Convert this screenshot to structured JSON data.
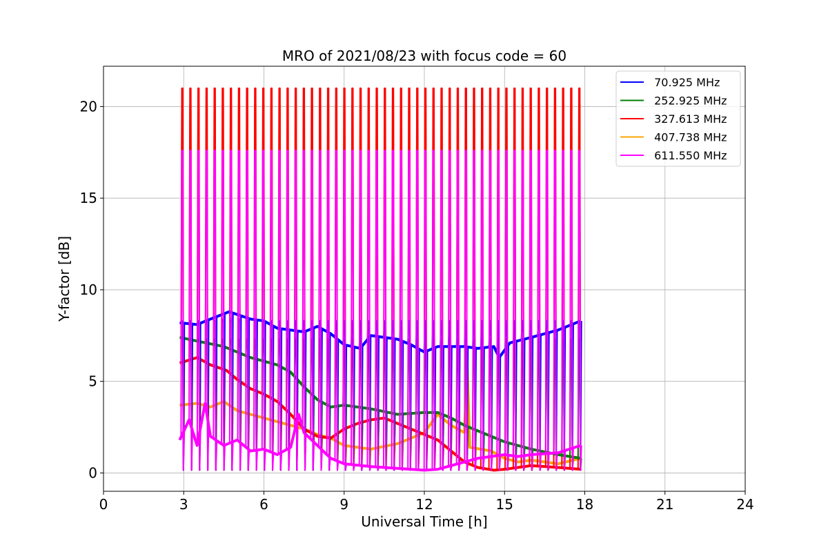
{
  "chart_data": {
    "type": "line",
    "title": "MRO of 2021/08/23 with focus code = 60",
    "xlabel": "Universal Time [h]",
    "ylabel": "Y-factor [dB]",
    "xlim": [
      0,
      24
    ],
    "ylim": [
      -1,
      22.2
    ],
    "xticks": [
      0,
      3,
      6,
      9,
      12,
      15,
      18,
      21,
      24
    ],
    "yticks": [
      0,
      5,
      10,
      15,
      20
    ],
    "grid": true,
    "legend_position": "top-right",
    "x_start": 2.85,
    "x_end": 17.85,
    "calibration_pulses": {
      "count": 50,
      "first_time": 2.95,
      "last_time": 17.8,
      "pulse_width_h": 0.05
    },
    "series": [
      {
        "name": " 70.925 MHz",
        "color": "#0000ff",
        "pulse_peak": 8.3,
        "pulse_floor": 0.15,
        "baseline": [
          [
            2.85,
            8.2
          ],
          [
            3.5,
            8.1
          ],
          [
            4.0,
            8.4
          ],
          [
            4.7,
            8.8
          ],
          [
            5.5,
            8.4
          ],
          [
            6.0,
            8.3
          ],
          [
            6.5,
            7.9
          ],
          [
            7.5,
            7.7
          ],
          [
            8.0,
            8.0
          ],
          [
            8.5,
            7.6
          ],
          [
            9.0,
            7.0
          ],
          [
            9.6,
            6.8
          ],
          [
            10.0,
            7.5
          ],
          [
            11.0,
            7.3
          ],
          [
            11.5,
            7.0
          ],
          [
            12.0,
            6.6
          ],
          [
            12.5,
            6.9
          ],
          [
            13.5,
            6.9
          ],
          [
            14.0,
            6.8
          ],
          [
            14.6,
            6.9
          ],
          [
            14.8,
            6.3
          ],
          [
            15.2,
            7.1
          ],
          [
            16.0,
            7.4
          ],
          [
            17.0,
            7.8
          ],
          [
            17.85,
            8.3
          ]
        ]
      },
      {
        "name": " 252.925 MHz",
        "color": "#008000",
        "pulse_peak": 7.3,
        "pulse_floor": 0.15,
        "baseline": [
          [
            2.85,
            7.4
          ],
          [
            3.5,
            7.2
          ],
          [
            4.5,
            6.9
          ],
          [
            5.0,
            6.6
          ],
          [
            5.5,
            6.3
          ],
          [
            6.0,
            6.1
          ],
          [
            6.5,
            5.9
          ],
          [
            7.0,
            5.5
          ],
          [
            7.5,
            4.7
          ],
          [
            8.0,
            4.0
          ],
          [
            8.5,
            3.6
          ],
          [
            9.0,
            3.7
          ],
          [
            10.0,
            3.5
          ],
          [
            11.0,
            3.2
          ],
          [
            12.0,
            3.3
          ],
          [
            12.5,
            3.3
          ],
          [
            13.0,
            3.0
          ],
          [
            13.5,
            2.6
          ],
          [
            14.0,
            2.3
          ],
          [
            15.0,
            1.7
          ],
          [
            16.0,
            1.3
          ],
          [
            17.0,
            1.0
          ],
          [
            17.85,
            0.8
          ]
        ]
      },
      {
        "name": " 327.613 MHz",
        "color": "#ff0000",
        "pulse_peak": 21.0,
        "pulse_floor": 0.15,
        "baseline": [
          [
            2.85,
            6.0
          ],
          [
            3.5,
            6.3
          ],
          [
            4.0,
            5.9
          ],
          [
            4.6,
            5.6
          ],
          [
            5.0,
            5.1
          ],
          [
            5.5,
            4.6
          ],
          [
            6.0,
            4.3
          ],
          [
            6.5,
            3.9
          ],
          [
            7.0,
            3.2
          ],
          [
            7.5,
            2.4
          ],
          [
            8.0,
            2.0
          ],
          [
            8.5,
            1.9
          ],
          [
            9.0,
            2.4
          ],
          [
            9.5,
            2.7
          ],
          [
            10.0,
            2.9
          ],
          [
            10.5,
            3.0
          ],
          [
            11.0,
            2.7
          ],
          [
            11.5,
            2.4
          ],
          [
            12.0,
            2.1
          ],
          [
            12.5,
            1.8
          ],
          [
            13.0,
            1.2
          ],
          [
            13.5,
            0.6
          ],
          [
            14.0,
            0.3
          ],
          [
            14.6,
            0.15
          ],
          [
            15.0,
            0.2
          ],
          [
            15.5,
            0.3
          ],
          [
            16.0,
            0.4
          ],
          [
            17.0,
            0.3
          ],
          [
            17.85,
            0.2
          ]
        ]
      },
      {
        "name": " 407.738 MHz",
        "color": "#ffa500",
        "pulse_peak": 20.1,
        "pulse_floor": 0.15,
        "baseline": [
          [
            2.85,
            3.7
          ],
          [
            3.5,
            3.8
          ],
          [
            4.0,
            3.6
          ],
          [
            4.5,
            3.9
          ],
          [
            5.0,
            3.4
          ],
          [
            5.5,
            3.2
          ],
          [
            6.0,
            3.0
          ],
          [
            7.0,
            2.6
          ],
          [
            7.5,
            2.4
          ],
          [
            8.0,
            2.1
          ],
          [
            8.5,
            1.9
          ],
          [
            9.0,
            1.5
          ],
          [
            10.0,
            1.3
          ],
          [
            11.0,
            1.6
          ],
          [
            12.0,
            2.2
          ],
          [
            12.5,
            3.2
          ],
          [
            13.0,
            2.6
          ],
          [
            13.5,
            2.2
          ],
          [
            13.6,
            5.9
          ],
          [
            13.7,
            1.4
          ],
          [
            14.5,
            1.2
          ],
          [
            15.0,
            0.8
          ],
          [
            15.5,
            0.6
          ],
          [
            16.0,
            0.7
          ],
          [
            17.0,
            0.5
          ],
          [
            17.85,
            0.8
          ]
        ]
      },
      {
        "name": " 611.550 MHz",
        "color": "#ff00ff",
        "pulse_peak": 17.6,
        "pulse_floor": 0.15,
        "baseline": [
          [
            2.85,
            1.8
          ],
          [
            3.2,
            2.9
          ],
          [
            3.5,
            1.5
          ],
          [
            3.8,
            3.8
          ],
          [
            4.0,
            2.0
          ],
          [
            4.5,
            1.5
          ],
          [
            5.0,
            1.8
          ],
          [
            5.5,
            1.2
          ],
          [
            6.0,
            1.3
          ],
          [
            6.5,
            1.0
          ],
          [
            7.0,
            1.4
          ],
          [
            7.3,
            3.2
          ],
          [
            7.5,
            2.2
          ],
          [
            8.0,
            1.5
          ],
          [
            8.5,
            0.8
          ],
          [
            9.0,
            0.5
          ],
          [
            10.0,
            0.35
          ],
          [
            11.0,
            0.25
          ],
          [
            12.0,
            0.15
          ],
          [
            12.5,
            0.2
          ],
          [
            13.0,
            0.4
          ],
          [
            13.5,
            0.6
          ],
          [
            14.0,
            0.8
          ],
          [
            14.5,
            0.9
          ],
          [
            15.0,
            1.0
          ],
          [
            15.5,
            0.9
          ],
          [
            16.0,
            1.0
          ],
          [
            17.0,
            1.1
          ],
          [
            17.85,
            1.5
          ]
        ]
      }
    ]
  }
}
